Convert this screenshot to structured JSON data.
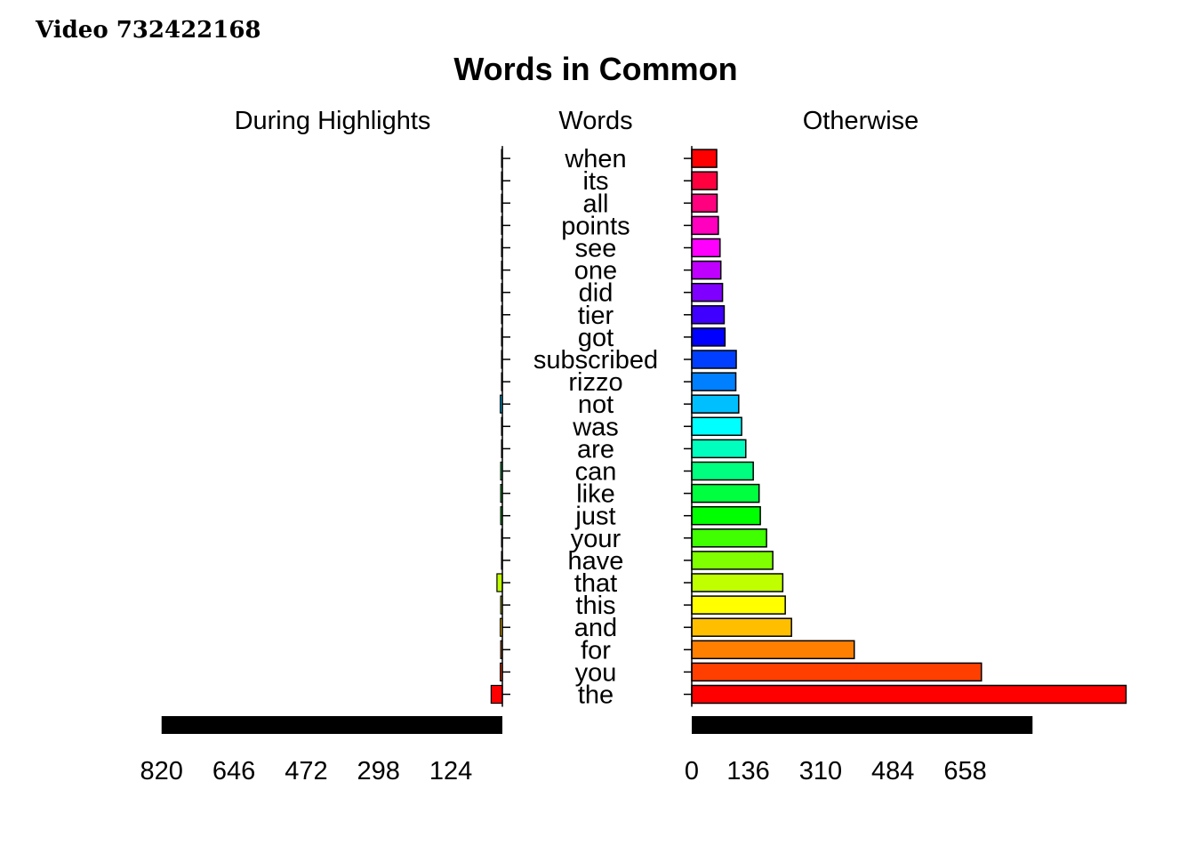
{
  "page_label": "Video 732422168",
  "chart_data": {
    "type": "bar",
    "title": "Words in Common",
    "left_panel_title": "During Highlights",
    "center_panel_title": "Words",
    "right_panel_title": "Otherwise",
    "left_tick_labels": [
      "820",
      "646",
      "472",
      "298",
      "124"
    ],
    "right_tick_labels": [
      "0",
      "136",
      "310",
      "484",
      "658"
    ],
    "categories": [
      "the",
      "you",
      "for",
      "and",
      "this",
      "that",
      "have",
      "your",
      "just",
      "like",
      "can",
      "are",
      "was",
      "not",
      "rizzo",
      "subscribed",
      "got",
      "tier",
      "did",
      "one",
      "see",
      "points",
      "all",
      "its",
      "when"
    ],
    "series": [
      {
        "name": "During Highlights",
        "values": [
          27,
          5,
          4,
          5,
          4,
          13,
          2,
          2,
          4,
          4,
          4,
          2,
          2,
          5,
          2,
          2,
          2,
          2,
          2,
          2,
          2,
          2,
          2,
          2,
          2
        ]
      },
      {
        "name": "Otherwise",
        "values": [
          1045,
          697,
          391,
          240,
          225,
          219,
          195,
          180,
          165,
          162,
          148,
          130,
          120,
          113,
          106,
          107,
          80,
          78,
          74,
          70,
          68,
          64,
          61,
          61,
          60
        ]
      }
    ],
    "left_scale_bar_value": 820,
    "right_scale_bar_value": 820,
    "colors": [
      "#ff0000",
      "#ff3f00",
      "#ff7f00",
      "#ffbf00",
      "#ffff00",
      "#bfff00",
      "#7fff00",
      "#3fff00",
      "#00ff00",
      "#00ff3f",
      "#00ff7f",
      "#00ffbf",
      "#00ffff",
      "#00bfff",
      "#007fff",
      "#003fff",
      "#0000ff",
      "#3f00ff",
      "#7f00ff",
      "#bf00ff",
      "#ff00ff",
      "#ff00bf",
      "#ff007f",
      "#ff003f",
      "#ff0000"
    ],
    "scale_bar_color": "#000000"
  }
}
